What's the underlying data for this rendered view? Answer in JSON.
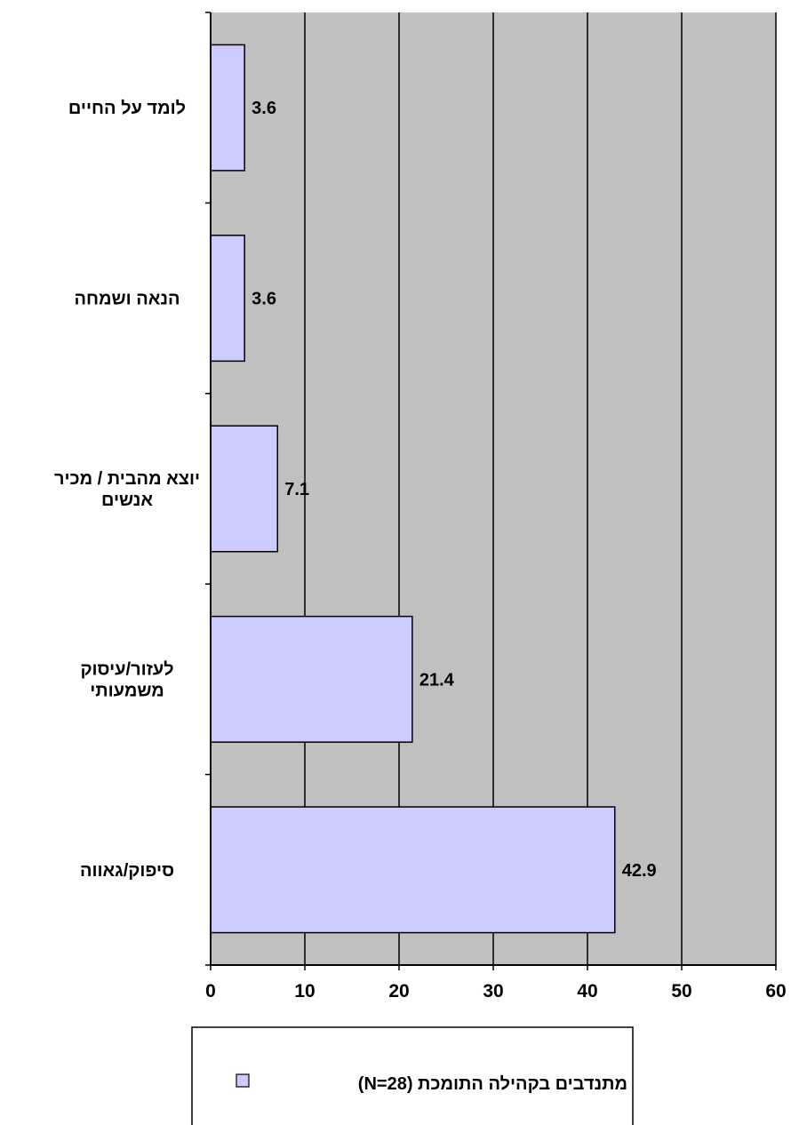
{
  "chart_data": {
    "type": "bar",
    "orientation": "horizontal",
    "categories": [
      [
        "סיפוק/גאווה"
      ],
      [
        "לעזור/עיסוק",
        "משמעותי"
      ],
      [
        "יוצא מהבית / מכיר",
        "אנשים"
      ],
      [
        "הנאה ושמחה"
      ],
      [
        "לומד על החיים"
      ]
    ],
    "series": [
      {
        "name": "מתנדבים בקהילה התומכת (N=28)",
        "values": [
          42.9,
          21.4,
          7.1,
          3.6,
          3.6
        ]
      }
    ],
    "xlim": [
      0,
      60
    ],
    "xticks": [
      0,
      10,
      20,
      30,
      40,
      50,
      60
    ],
    "grid": true,
    "legend": "bottom",
    "colors": {
      "bar_fill": "#CCCCFF",
      "bar_stroke": "#000000",
      "plot_bg": "#C0C0C0",
      "gridline": "#000000"
    }
  }
}
